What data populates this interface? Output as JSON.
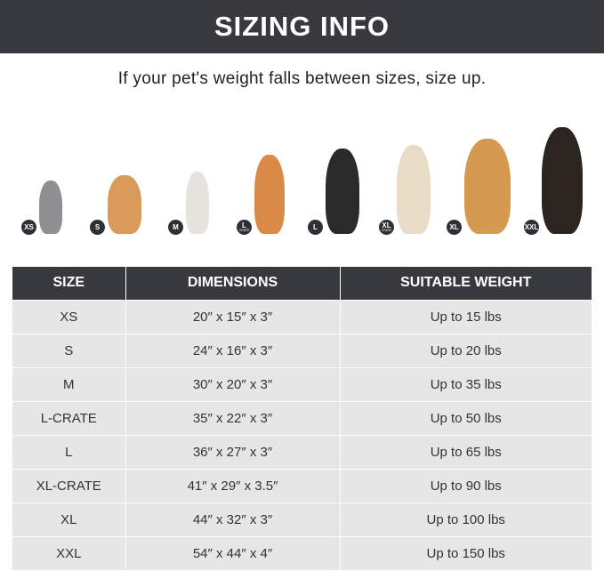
{
  "header": {
    "title": "SIZING INFO"
  },
  "subtitle": "If your pet's weight falls between sizes, size up.",
  "pets": [
    {
      "badge": "XS",
      "sub": "",
      "animal": "cat",
      "color": "#8d8f93"
    },
    {
      "badge": "S",
      "sub": "",
      "animal": "pomeranian",
      "color": "#d99a5a"
    },
    {
      "badge": "M",
      "sub": "",
      "animal": "french-bulldog",
      "color": "#e6e3df"
    },
    {
      "badge": "L",
      "sub": "CRATE",
      "animal": "shiba-inu",
      "color": "#d98a47"
    },
    {
      "badge": "L",
      "sub": "",
      "animal": "border-collie",
      "color": "#2a2a2a"
    },
    {
      "badge": "XL",
      "sub": "CRATE",
      "animal": "labrador",
      "color": "#e8dcc6"
    },
    {
      "badge": "XL",
      "sub": "",
      "animal": "golden-retriever",
      "color": "#d59a4f"
    },
    {
      "badge": "XXL",
      "sub": "",
      "animal": "doberman",
      "color": "#2b2420"
    }
  ],
  "table": {
    "headers": [
      "SIZE",
      "DIMENSIONS",
      "SUITABLE WEIGHT"
    ],
    "rows": [
      [
        "XS",
        "20″ x 15″ x 3″",
        "Up to 15 lbs"
      ],
      [
        "S",
        "24″ x 16″ x 3″",
        "Up to 20 lbs"
      ],
      [
        "M",
        "30″ x 20″ x 3″",
        "Up to 35 lbs"
      ],
      [
        "L-CRATE",
        "35″ x 22″ x 3″",
        "Up to 50 lbs"
      ],
      [
        "L",
        "36″ x 27″ x 3″",
        "Up to 65 lbs"
      ],
      [
        "XL-CRATE",
        "41″ x 29″ x 3.5″",
        "Up to 90 lbs"
      ],
      [
        "XL",
        "44″ x 32″ x 3″",
        "Up to 100 lbs"
      ],
      [
        "XXL",
        "54″ x 44″ x 4″",
        "Up to 150 lbs"
      ]
    ]
  }
}
